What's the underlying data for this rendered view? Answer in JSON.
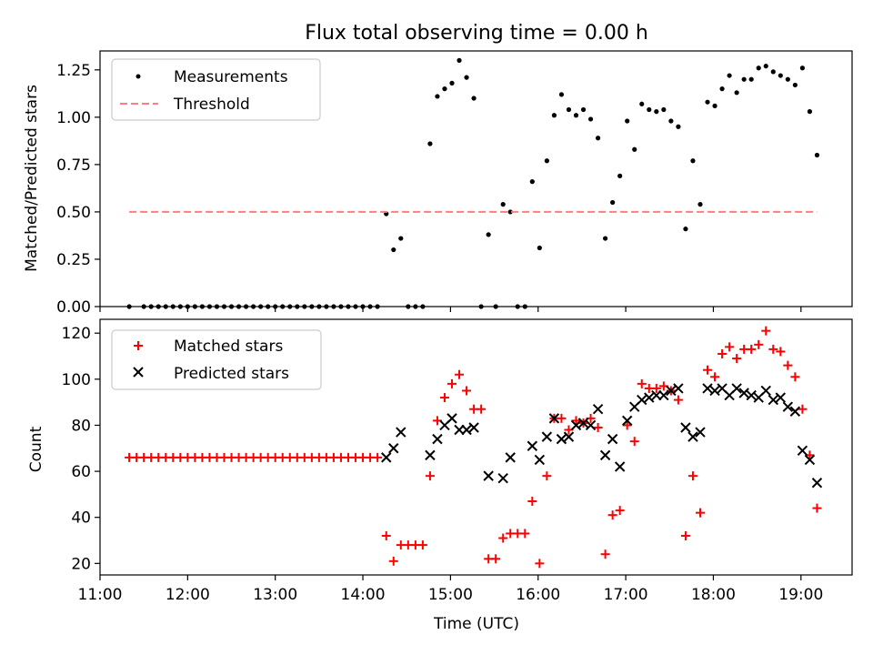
{
  "figure": {
    "title": "Flux total observing time = 0.00 h"
  },
  "chart_data": [
    {
      "type": "scatter",
      "ylabel": "Matched/Predicted stars",
      "xlabel": "",
      "xlim": [
        "11:00",
        "19:35"
      ],
      "ylim": [
        0,
        1.35
      ],
      "yticks": [
        0,
        0.25,
        0.5,
        0.75,
        1.0,
        1.25
      ],
      "ytick_labels": [
        "0.00",
        "0.25",
        "0.50",
        "0.75",
        "1.00",
        "1.25"
      ],
      "legend_position": "top-left",
      "series": [
        {
          "name": "Measurements",
          "color": "#000000",
          "marker": "dot",
          "points": [
            [
              "11:20",
              0
            ],
            [
              "11:30",
              0
            ],
            [
              "11:35",
              0
            ],
            [
              "11:40",
              0
            ],
            [
              "11:45",
              0
            ],
            [
              "11:50",
              0
            ],
            [
              "11:55",
              0
            ],
            [
              "12:00",
              0
            ],
            [
              "12:05",
              0
            ],
            [
              "12:10",
              0
            ],
            [
              "12:15",
              0
            ],
            [
              "12:20",
              0
            ],
            [
              "12:25",
              0
            ],
            [
              "12:30",
              0
            ],
            [
              "12:35",
              0
            ],
            [
              "12:40",
              0
            ],
            [
              "12:45",
              0
            ],
            [
              "12:50",
              0
            ],
            [
              "12:55",
              0
            ],
            [
              "13:00",
              0
            ],
            [
              "13:05",
              0
            ],
            [
              "13:10",
              0
            ],
            [
              "13:15",
              0
            ],
            [
              "13:20",
              0
            ],
            [
              "13:25",
              0
            ],
            [
              "13:30",
              0
            ],
            [
              "13:35",
              0
            ],
            [
              "13:40",
              0
            ],
            [
              "13:45",
              0
            ],
            [
              "13:50",
              0
            ],
            [
              "13:55",
              0
            ],
            [
              "14:00",
              0
            ],
            [
              "14:05",
              0
            ],
            [
              "14:10",
              0
            ],
            [
              "14:16",
              0.49
            ],
            [
              "14:21",
              0.3
            ],
            [
              "14:26",
              0.36
            ],
            [
              "14:31",
              0
            ],
            [
              "14:36",
              0
            ],
            [
              "14:41",
              0
            ],
            [
              "14:46",
              0.86
            ],
            [
              "14:51",
              1.11
            ],
            [
              "14:56",
              1.15
            ],
            [
              "15:01",
              1.18
            ],
            [
              "15:06",
              1.3
            ],
            [
              "15:11",
              1.21
            ],
            [
              "15:16",
              1.1
            ],
            [
              "15:21",
              0
            ],
            [
              "15:26",
              0.38
            ],
            [
              "15:31",
              0
            ],
            [
              "15:36",
              0.54
            ],
            [
              "15:41",
              0.5
            ],
            [
              "15:46",
              0
            ],
            [
              "15:51",
              0
            ],
            [
              "15:56",
              0.66
            ],
            [
              "16:01",
              0.31
            ],
            [
              "16:06",
              0.77
            ],
            [
              "16:11",
              1.01
            ],
            [
              "16:16",
              1.12
            ],
            [
              "16:21",
              1.04
            ],
            [
              "16:26",
              1.01
            ],
            [
              "16:31",
              1.04
            ],
            [
              "16:36",
              0.99
            ],
            [
              "16:41",
              0.89
            ],
            [
              "16:46",
              0.36
            ],
            [
              "16:51",
              0.55
            ],
            [
              "16:56",
              0.69
            ],
            [
              "17:01",
              0.98
            ],
            [
              "17:06",
              0.83
            ],
            [
              "17:11",
              1.07
            ],
            [
              "17:16",
              1.04
            ],
            [
              "17:21",
              1.03
            ],
            [
              "17:26",
              1.04
            ],
            [
              "17:31",
              0.98
            ],
            [
              "17:36",
              0.95
            ],
            [
              "17:41",
              0.41
            ],
            [
              "17:46",
              0.77
            ],
            [
              "17:51",
              0.54
            ],
            [
              "17:56",
              1.08
            ],
            [
              "18:01",
              1.06
            ],
            [
              "18:06",
              1.15
            ],
            [
              "18:11",
              1.22
            ],
            [
              "18:16",
              1.13
            ],
            [
              "18:21",
              1.2
            ],
            [
              "18:26",
              1.2
            ],
            [
              "18:31",
              1.26
            ],
            [
              "18:36",
              1.27
            ],
            [
              "18:41",
              1.24
            ],
            [
              "18:46",
              1.22
            ],
            [
              "18:51",
              1.2
            ],
            [
              "18:56",
              1.17
            ],
            [
              "19:01",
              1.26
            ],
            [
              "19:06",
              1.03
            ],
            [
              "19:11",
              0.8
            ]
          ]
        },
        {
          "name": "Threshold",
          "color": "#ff7f7f",
          "style": "dashed-line",
          "points": [
            [
              "11:20",
              0.5
            ],
            [
              "19:11",
              0.5
            ]
          ]
        }
      ]
    },
    {
      "type": "scatter",
      "ylabel": "Count",
      "xlabel": "Time (UTC)",
      "xlim": [
        "11:00",
        "19:35"
      ],
      "ylim": [
        15,
        126
      ],
      "yticks": [
        20,
        40,
        60,
        80,
        100,
        120
      ],
      "ytick_labels": [
        "20",
        "40",
        "60",
        "80",
        "100",
        "120"
      ],
      "xticks": [
        "11:00",
        "12:00",
        "13:00",
        "14:00",
        "15:00",
        "16:00",
        "17:00",
        "18:00",
        "19:00"
      ],
      "legend_position": "top-left",
      "series": [
        {
          "name": "Matched stars",
          "color": "#ff0000",
          "marker": "plus",
          "points": [
            [
              "11:20",
              66
            ],
            [
              "11:25",
              66
            ],
            [
              "11:30",
              66
            ],
            [
              "11:35",
              66
            ],
            [
              "11:40",
              66
            ],
            [
              "11:45",
              66
            ],
            [
              "11:50",
              66
            ],
            [
              "11:55",
              66
            ],
            [
              "12:00",
              66
            ],
            [
              "12:05",
              66
            ],
            [
              "12:10",
              66
            ],
            [
              "12:15",
              66
            ],
            [
              "12:20",
              66
            ],
            [
              "12:25",
              66
            ],
            [
              "12:30",
              66
            ],
            [
              "12:35",
              66
            ],
            [
              "12:40",
              66
            ],
            [
              "12:45",
              66
            ],
            [
              "12:50",
              66
            ],
            [
              "12:55",
              66
            ],
            [
              "13:00",
              66
            ],
            [
              "13:05",
              66
            ],
            [
              "13:10",
              66
            ],
            [
              "13:15",
              66
            ],
            [
              "13:20",
              66
            ],
            [
              "13:25",
              66
            ],
            [
              "13:30",
              66
            ],
            [
              "13:35",
              66
            ],
            [
              "13:40",
              66
            ],
            [
              "13:45",
              66
            ],
            [
              "13:50",
              66
            ],
            [
              "13:55",
              66
            ],
            [
              "14:00",
              66
            ],
            [
              "14:05",
              66
            ],
            [
              "14:10",
              66
            ],
            [
              "14:16",
              32
            ],
            [
              "14:21",
              21
            ],
            [
              "14:26",
              28
            ],
            [
              "14:31",
              28
            ],
            [
              "14:36",
              28
            ],
            [
              "14:41",
              28
            ],
            [
              "14:46",
              58
            ],
            [
              "14:51",
              82
            ],
            [
              "14:56",
              92
            ],
            [
              "15:01",
              98
            ],
            [
              "15:06",
              102
            ],
            [
              "15:11",
              95
            ],
            [
              "15:16",
              87
            ],
            [
              "15:21",
              87
            ],
            [
              "15:26",
              22
            ],
            [
              "15:31",
              22
            ],
            [
              "15:36",
              31
            ],
            [
              "15:41",
              33
            ],
            [
              "15:46",
              33
            ],
            [
              "15:51",
              33
            ],
            [
              "15:56",
              47
            ],
            [
              "16:01",
              20
            ],
            [
              "16:06",
              58
            ],
            [
              "16:11",
              83
            ],
            [
              "16:16",
              83
            ],
            [
              "16:21",
              78
            ],
            [
              "16:26",
              82
            ],
            [
              "16:31",
              81
            ],
            [
              "16:36",
              83
            ],
            [
              "16:41",
              79
            ],
            [
              "16:46",
              24
            ],
            [
              "16:51",
              41
            ],
            [
              "16:56",
              43
            ],
            [
              "17:01",
              80
            ],
            [
              "17:06",
              73
            ],
            [
              "17:11",
              98
            ],
            [
              "17:16",
              96
            ],
            [
              "17:21",
              96
            ],
            [
              "17:26",
              97
            ],
            [
              "17:31",
              95
            ],
            [
              "17:36",
              91
            ],
            [
              "17:41",
              32
            ],
            [
              "17:46",
              58
            ],
            [
              "17:51",
              42
            ],
            [
              "17:56",
              104
            ],
            [
              "18:01",
              101
            ],
            [
              "18:06",
              111
            ],
            [
              "18:11",
              114
            ],
            [
              "18:16",
              109
            ],
            [
              "18:21",
              113
            ],
            [
              "18:26",
              113
            ],
            [
              "18:31",
              115
            ],
            [
              "18:36",
              121
            ],
            [
              "18:41",
              113
            ],
            [
              "18:46",
              112
            ],
            [
              "18:51",
              106
            ],
            [
              "18:56",
              101
            ],
            [
              "19:01",
              87
            ],
            [
              "19:06",
              67
            ],
            [
              "19:11",
              44
            ]
          ]
        },
        {
          "name": "Predicted stars",
          "color": "#000000",
          "marker": "x",
          "points": [
            [
              "14:16",
              66
            ],
            [
              "14:21",
              70
            ],
            [
              "14:26",
              77
            ],
            [
              "14:46",
              67
            ],
            [
              "14:51",
              74
            ],
            [
              "14:56",
              80
            ],
            [
              "15:01",
              83
            ],
            [
              "15:06",
              78
            ],
            [
              "15:11",
              78
            ],
            [
              "15:16",
              79
            ],
            [
              "15:26",
              58
            ],
            [
              "15:36",
              57
            ],
            [
              "15:41",
              66
            ],
            [
              "15:56",
              71
            ],
            [
              "16:01",
              65
            ],
            [
              "16:06",
              75
            ],
            [
              "16:11",
              83
            ],
            [
              "16:16",
              74
            ],
            [
              "16:21",
              75
            ],
            [
              "16:26",
              80
            ],
            [
              "16:31",
              81
            ],
            [
              "16:36",
              80
            ],
            [
              "16:41",
              87
            ],
            [
              "16:46",
              67
            ],
            [
              "16:51",
              74
            ],
            [
              "16:56",
              62
            ],
            [
              "17:01",
              82
            ],
            [
              "17:06",
              88
            ],
            [
              "17:11",
              91
            ],
            [
              "17:16",
              92
            ],
            [
              "17:21",
              93
            ],
            [
              "17:26",
              93
            ],
            [
              "17:31",
              95
            ],
            [
              "17:36",
              96
            ],
            [
              "17:41",
              79
            ],
            [
              "17:46",
              75
            ],
            [
              "17:51",
              77
            ],
            [
              "17:56",
              96
            ],
            [
              "18:01",
              95
            ],
            [
              "18:06",
              96
            ],
            [
              "18:11",
              93
            ],
            [
              "18:16",
              96
            ],
            [
              "18:21",
              94
            ],
            [
              "18:26",
              93
            ],
            [
              "18:31",
              92
            ],
            [
              "18:36",
              95
            ],
            [
              "18:41",
              91
            ],
            [
              "18:46",
              92
            ],
            [
              "18:51",
              88
            ],
            [
              "18:56",
              86
            ],
            [
              "19:01",
              69
            ],
            [
              "19:06",
              65
            ],
            [
              "19:11",
              55
            ]
          ]
        }
      ]
    }
  ]
}
